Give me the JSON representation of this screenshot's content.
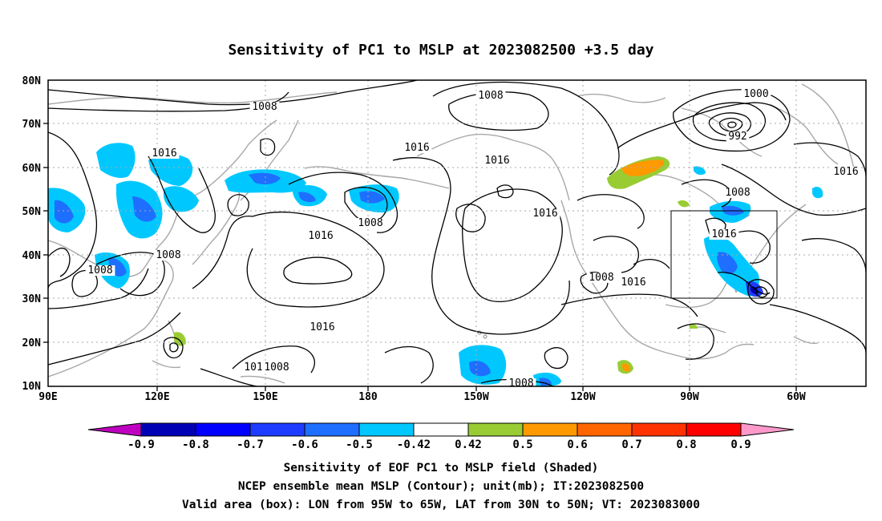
{
  "title": "Sensitivity of PC1 to MSLP at 2023082500 +3.5 day",
  "map": {
    "lon_labels": [
      "90E",
      "120E",
      "150E",
      "180",
      "150W",
      "120W",
      "90W",
      "60W"
    ],
    "lat_labels": [
      "10N",
      "20N",
      "30N",
      "40N",
      "50N",
      "60N",
      "70N",
      "80N"
    ],
    "contour_labels": [
      {
        "text": "1008"
      },
      {
        "text": "1008"
      },
      {
        "text": "1016"
      },
      {
        "text": "1008"
      },
      {
        "text": "1016"
      },
      {
        "text": "1008"
      },
      {
        "text": "1016"
      },
      {
        "text": "1016"
      },
      {
        "text": "1016"
      },
      {
        "text": "1008"
      },
      {
        "text": "1016"
      },
      {
        "text": "1016"
      },
      {
        "text": "1008"
      },
      {
        "text": "1000"
      },
      {
        "text": "992"
      },
      {
        "text": "1008"
      },
      {
        "text": "1016"
      },
      {
        "text": "1016"
      },
      {
        "text": "1008"
      },
      {
        "text": "1008"
      },
      {
        "text": "1016"
      }
    ],
    "valid_box": {
      "lon_from": "95W",
      "lon_to": "65W",
      "lat_from": "30N",
      "lat_to": "50N"
    }
  },
  "colorbar": {
    "labels": [
      "-0.9",
      "-0.8",
      "-0.7",
      "-0.6",
      "-0.5",
      "-0.42",
      "0.42",
      "0.5",
      "0.6",
      "0.7",
      "0.8",
      "0.9"
    ],
    "colors": [
      "#c000c0",
      "#0000b4",
      "#0000ff",
      "#1e3cff",
      "#1e6eff",
      "#00c8ff",
      "#ffffff",
      "#99cc33",
      "#ff9900",
      "#ff6600",
      "#ff3300",
      "#ff0000",
      "#ff99cc"
    ]
  },
  "footer": {
    "line1": "Sensitivity of EOF PC1 to MSLP field (Shaded)",
    "line2": "NCEP ensemble mean MSLP (Contour); unit(mb); IT:2023082500",
    "line3": "Valid area (box): LON from 95W to 65W, LAT from 30N to 50N; VT: 2023083000"
  }
}
